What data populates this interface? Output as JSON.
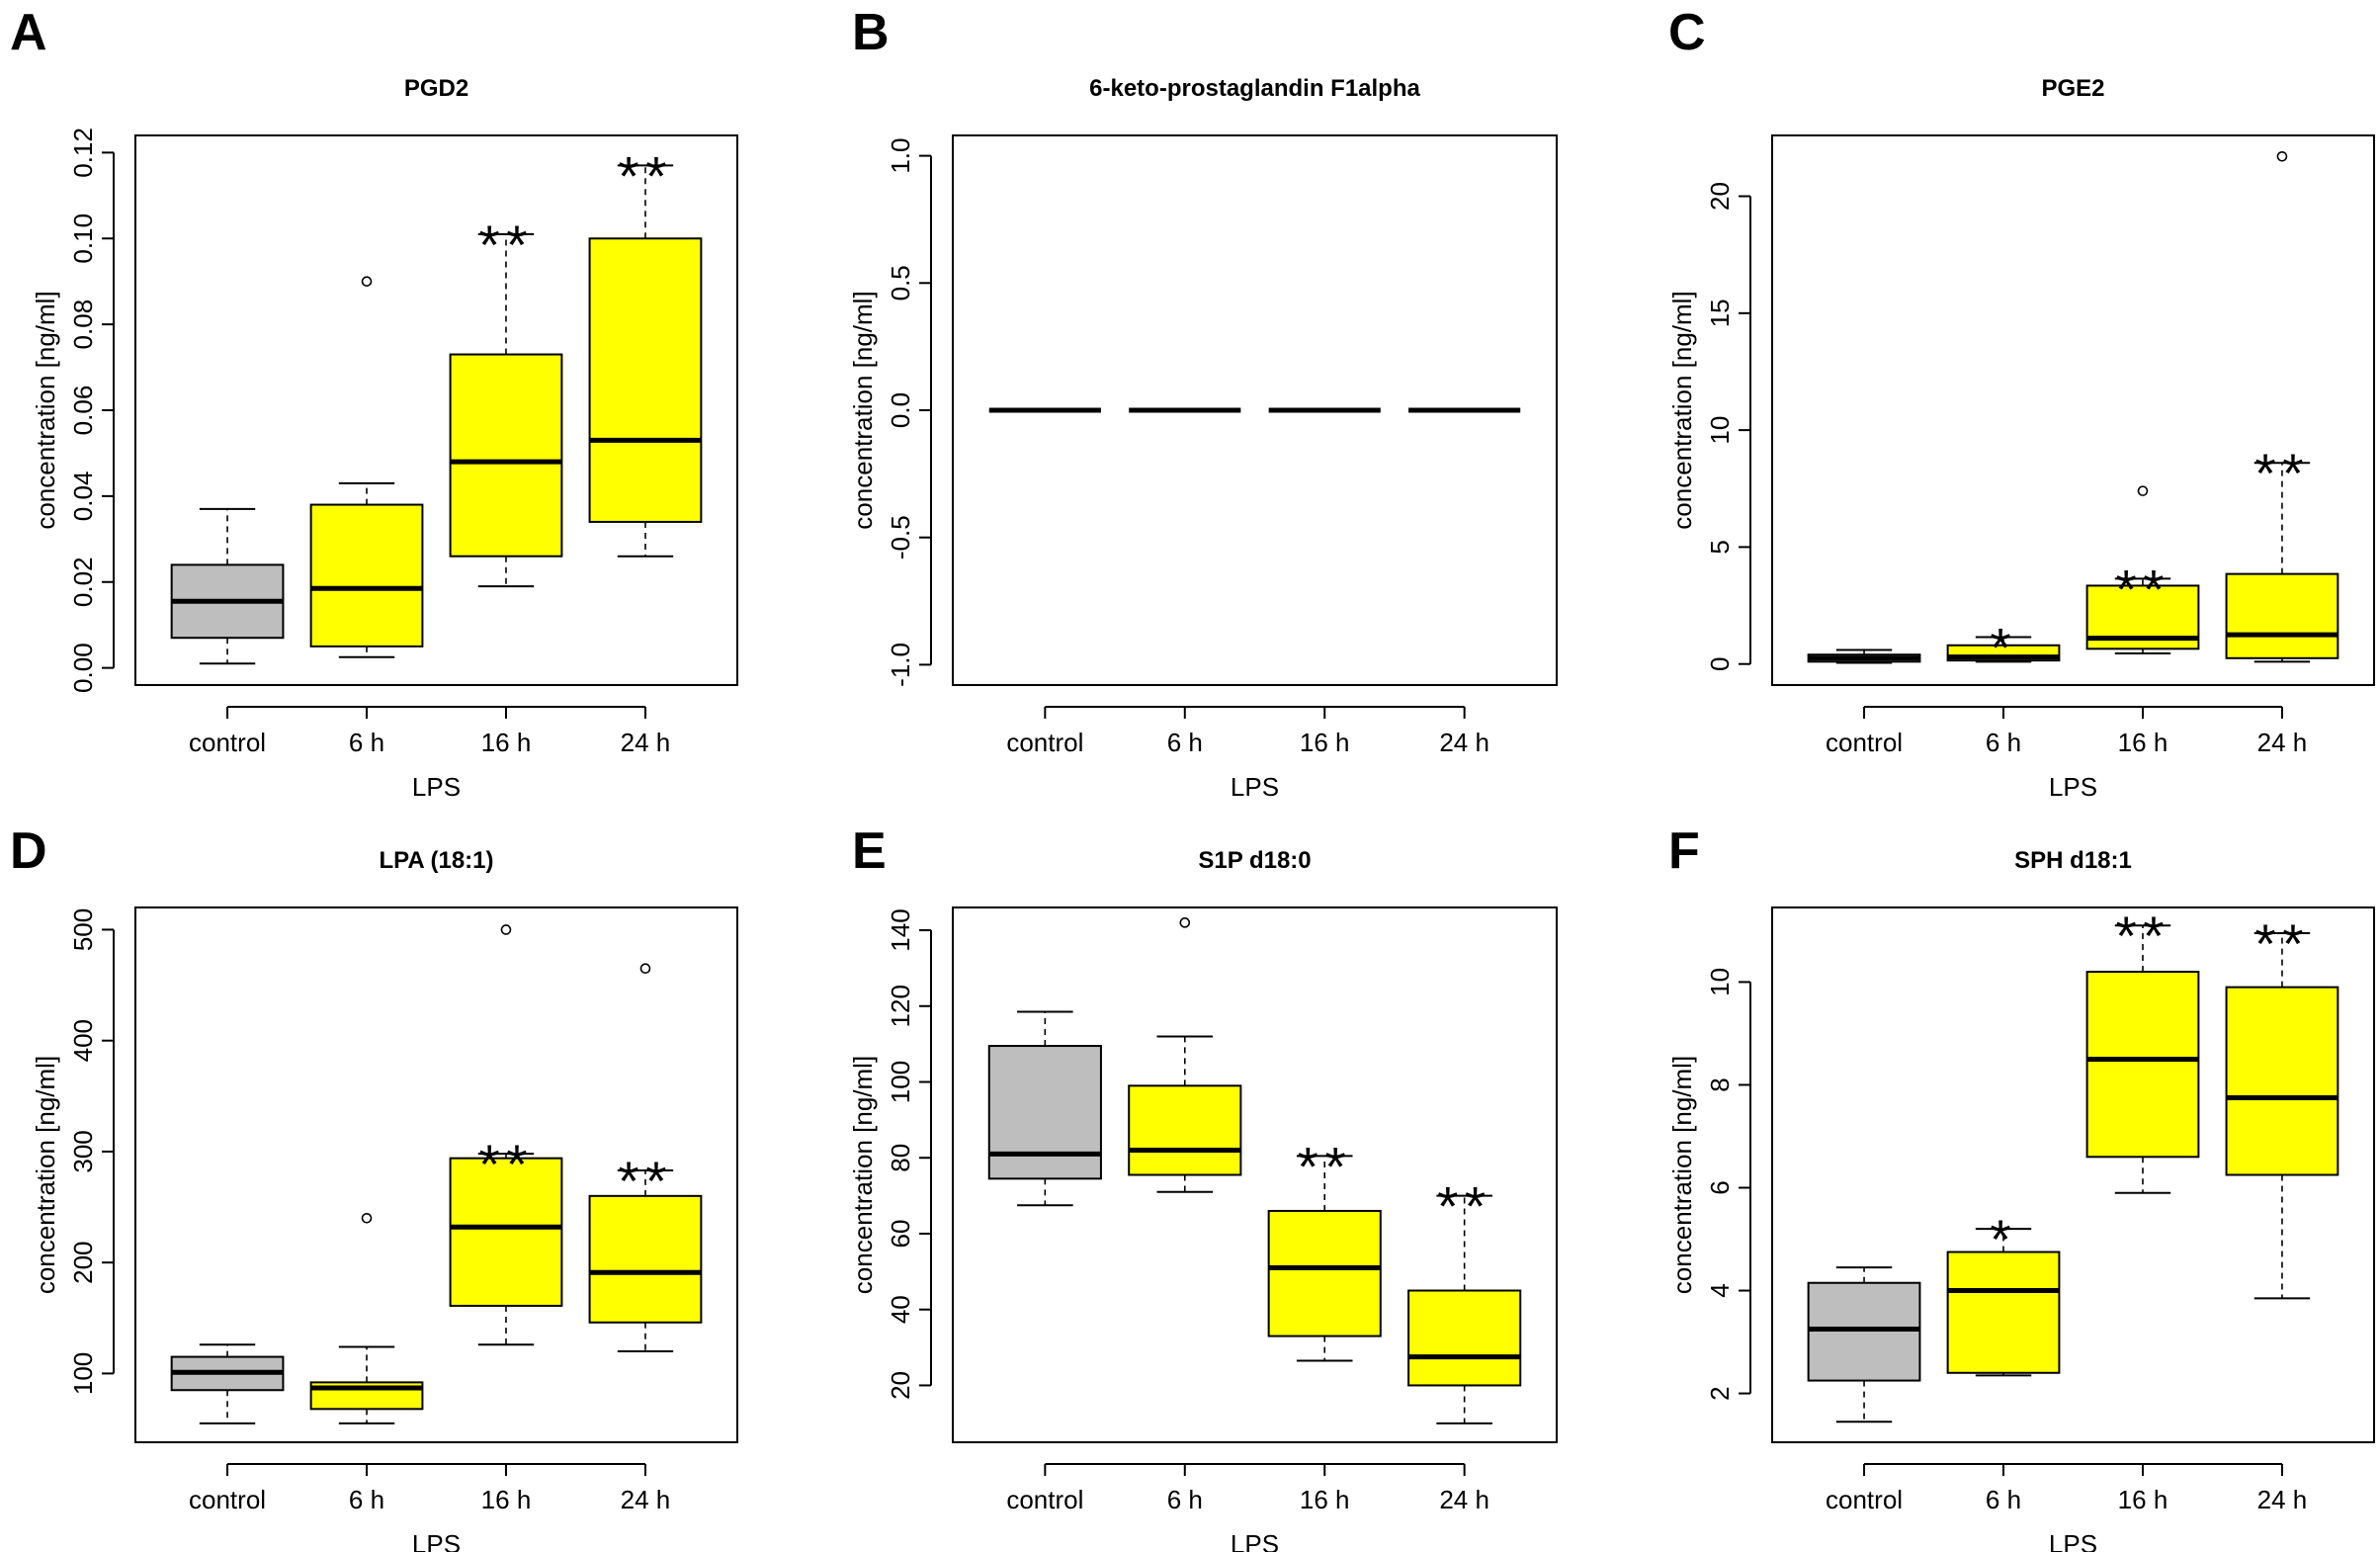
{
  "figure": {
    "colors": {
      "control": "#BEBEBE",
      "treated": "#FFFF00",
      "stroke": "#000000"
    }
  },
  "chart_data": [
    {
      "type": "box",
      "panel": "A",
      "title": "PGD2",
      "ylabel": "concentration [ng/ml]",
      "xlabel": "LPS",
      "categories": [
        "control",
        "6 h",
        "16 h",
        "24 h"
      ],
      "ylim": [
        -0.004,
        0.124
      ],
      "yticks": [
        0.0,
        0.02,
        0.04,
        0.06,
        0.08,
        0.1,
        0.12
      ],
      "ytick_labels": [
        "0.00",
        "0.02",
        "0.04",
        "0.06",
        "0.08",
        "0.10",
        "0.12"
      ],
      "boxes": [
        {
          "whisker_low": 0.001,
          "q1": 0.007,
          "median": 0.0155,
          "q3": 0.024,
          "whisker_high": 0.037,
          "outliers": [],
          "fill": "control"
        },
        {
          "whisker_low": 0.0025,
          "q1": 0.005,
          "median": 0.0185,
          "q3": 0.038,
          "whisker_high": 0.043,
          "outliers": [
            0.09
          ],
          "fill": "treated"
        },
        {
          "whisker_low": 0.019,
          "q1": 0.026,
          "median": 0.048,
          "q3": 0.073,
          "whisker_high": 0.101,
          "outliers": [],
          "fill": "treated",
          "significance": "**"
        },
        {
          "whisker_low": 0.026,
          "q1": 0.034,
          "median": 0.053,
          "q3": 0.1,
          "whisker_high": 0.117,
          "outliers": [],
          "fill": "treated",
          "significance": "**"
        }
      ]
    },
    {
      "type": "box",
      "panel": "B",
      "title": "6-keto-prostaglandin F1alpha",
      "ylabel": "concentration [ng/ml]",
      "xlabel": "LPS",
      "categories": [
        "control",
        "6 h",
        "16 h",
        "24 h"
      ],
      "ylim": [
        -1.08,
        1.08
      ],
      "yticks": [
        -1.0,
        -0.5,
        0.0,
        0.5,
        1.0
      ],
      "ytick_labels": [
        "-1.0",
        "-0.5",
        "0.0",
        "0.5",
        "1.0"
      ],
      "boxes": [
        {
          "whisker_low": 0,
          "q1": 0,
          "median": 0,
          "q3": 0,
          "whisker_high": 0,
          "outliers": [],
          "fill": "control"
        },
        {
          "whisker_low": 0,
          "q1": 0,
          "median": 0,
          "q3": 0,
          "whisker_high": 0,
          "outliers": [],
          "fill": "treated"
        },
        {
          "whisker_low": 0,
          "q1": 0,
          "median": 0,
          "q3": 0,
          "whisker_high": 0,
          "outliers": [],
          "fill": "treated"
        },
        {
          "whisker_low": 0,
          "q1": 0,
          "median": 0,
          "q3": 0,
          "whisker_high": 0,
          "outliers": [],
          "fill": "treated"
        }
      ]
    },
    {
      "type": "box",
      "panel": "C",
      "title": "PGE2",
      "ylabel": "concentration [ng/ml]",
      "xlabel": "LPS",
      "categories": [
        "control",
        "6 h",
        "16 h",
        "24 h"
      ],
      "ylim": [
        -0.9,
        22.6
      ],
      "yticks": [
        0,
        5,
        10,
        15,
        20
      ],
      "ytick_labels": [
        "0",
        "5",
        "10",
        "15",
        "20"
      ],
      "boxes": [
        {
          "whisker_low": 0.05,
          "q1": 0.1,
          "median": 0.25,
          "q3": 0.4,
          "whisker_high": 0.6,
          "outliers": [],
          "fill": "control"
        },
        {
          "whisker_low": 0.1,
          "q1": 0.15,
          "median": 0.3,
          "q3": 0.8,
          "whisker_high": 1.15,
          "outliers": [],
          "fill": "treated",
          "significance": "*"
        },
        {
          "whisker_low": 0.45,
          "q1": 0.65,
          "median": 1.1,
          "q3": 3.35,
          "whisker_high": 3.65,
          "outliers": [
            7.4
          ],
          "fill": "treated",
          "significance": "**"
        },
        {
          "whisker_low": 0.1,
          "q1": 0.25,
          "median": 1.25,
          "q3": 3.85,
          "whisker_high": 8.6,
          "outliers": [
            21.7
          ],
          "fill": "treated",
          "significance": "**"
        }
      ]
    },
    {
      "type": "box",
      "panel": "D",
      "title": "LPA (18:1)",
      "ylabel": "concentration [ng/ml]",
      "xlabel": "LPS",
      "categories": [
        "control",
        "6 h",
        "16 h",
        "24 h"
      ],
      "ylim": [
        38,
        520
      ],
      "yticks": [
        100,
        200,
        300,
        400,
        500
      ],
      "ytick_labels": [
        "100",
        "200",
        "300",
        "400",
        "500"
      ],
      "boxes": [
        {
          "whisker_low": 55,
          "q1": 85,
          "median": 101,
          "q3": 115,
          "whisker_high": 126,
          "outliers": [],
          "fill": "control"
        },
        {
          "whisker_low": 55,
          "q1": 68,
          "median": 87,
          "q3": 92,
          "whisker_high": 124,
          "outliers": [
            240
          ],
          "fill": "treated"
        },
        {
          "whisker_low": 126,
          "q1": 161,
          "median": 232,
          "q3": 294,
          "whisker_high": 298,
          "outliers": [
            500
          ],
          "fill": "treated",
          "significance": "**"
        },
        {
          "whisker_low": 120,
          "q1": 146,
          "median": 191,
          "q3": 260,
          "whisker_high": 283,
          "outliers": [
            465
          ],
          "fill": "treated",
          "significance": "**"
        }
      ]
    },
    {
      "type": "box",
      "panel": "E",
      "title": "S1P d18:0",
      "ylabel": "concentration [ng/ml]",
      "xlabel": "LPS",
      "categories": [
        "control",
        "6 h",
        "16 h",
        "24 h"
      ],
      "ylim": [
        5,
        146
      ],
      "yticks": [
        20,
        40,
        60,
        80,
        100,
        120,
        140
      ],
      "ytick_labels": [
        "20",
        "40",
        "60",
        "80",
        "100",
        "120",
        "140"
      ],
      "boxes": [
        {
          "whisker_low": 67.5,
          "q1": 74.5,
          "median": 81,
          "q3": 109.5,
          "whisker_high": 118.5,
          "outliers": [],
          "fill": "control"
        },
        {
          "whisker_low": 71,
          "q1": 75.5,
          "median": 82,
          "q3": 99,
          "whisker_high": 112,
          "outliers": [
            142
          ],
          "fill": "treated"
        },
        {
          "whisker_low": 26.5,
          "q1": 33,
          "median": 51,
          "q3": 66,
          "whisker_high": 80.5,
          "outliers": [],
          "fill": "treated",
          "significance": "**"
        },
        {
          "whisker_low": 10,
          "q1": 20,
          "median": 27.5,
          "q3": 45,
          "whisker_high": 70,
          "outliers": [],
          "fill": "treated",
          "significance": "**"
        }
      ]
    },
    {
      "type": "box",
      "panel": "F",
      "title": "SPH d18:1",
      "ylabel": "concentration [ng/ml]",
      "xlabel": "LPS",
      "categories": [
        "control",
        "6 h",
        "16 h",
        "24 h"
      ],
      "ylim": [
        1.05,
        11.45
      ],
      "yticks": [
        2,
        4,
        6,
        8,
        10
      ],
      "ytick_labels": [
        "2",
        "4",
        "6",
        "8",
        "10"
      ],
      "boxes": [
        {
          "whisker_low": 1.45,
          "q1": 2.25,
          "median": 3.25,
          "q3": 4.15,
          "whisker_high": 4.45,
          "outliers": [],
          "fill": "control"
        },
        {
          "whisker_low": 2.35,
          "q1": 2.4,
          "median": 4.0,
          "q3": 4.75,
          "whisker_high": 5.2,
          "outliers": [],
          "fill": "treated",
          "significance": "*"
        },
        {
          "whisker_low": 5.9,
          "q1": 6.6,
          "median": 8.5,
          "q3": 10.2,
          "whisker_high": 11.1,
          "outliers": [],
          "fill": "treated",
          "significance": "**"
        },
        {
          "whisker_low": 3.85,
          "q1": 6.25,
          "median": 7.75,
          "q3": 9.9,
          "whisker_high": 10.95,
          "outliers": [],
          "fill": "treated",
          "significance": "**"
        }
      ]
    }
  ]
}
